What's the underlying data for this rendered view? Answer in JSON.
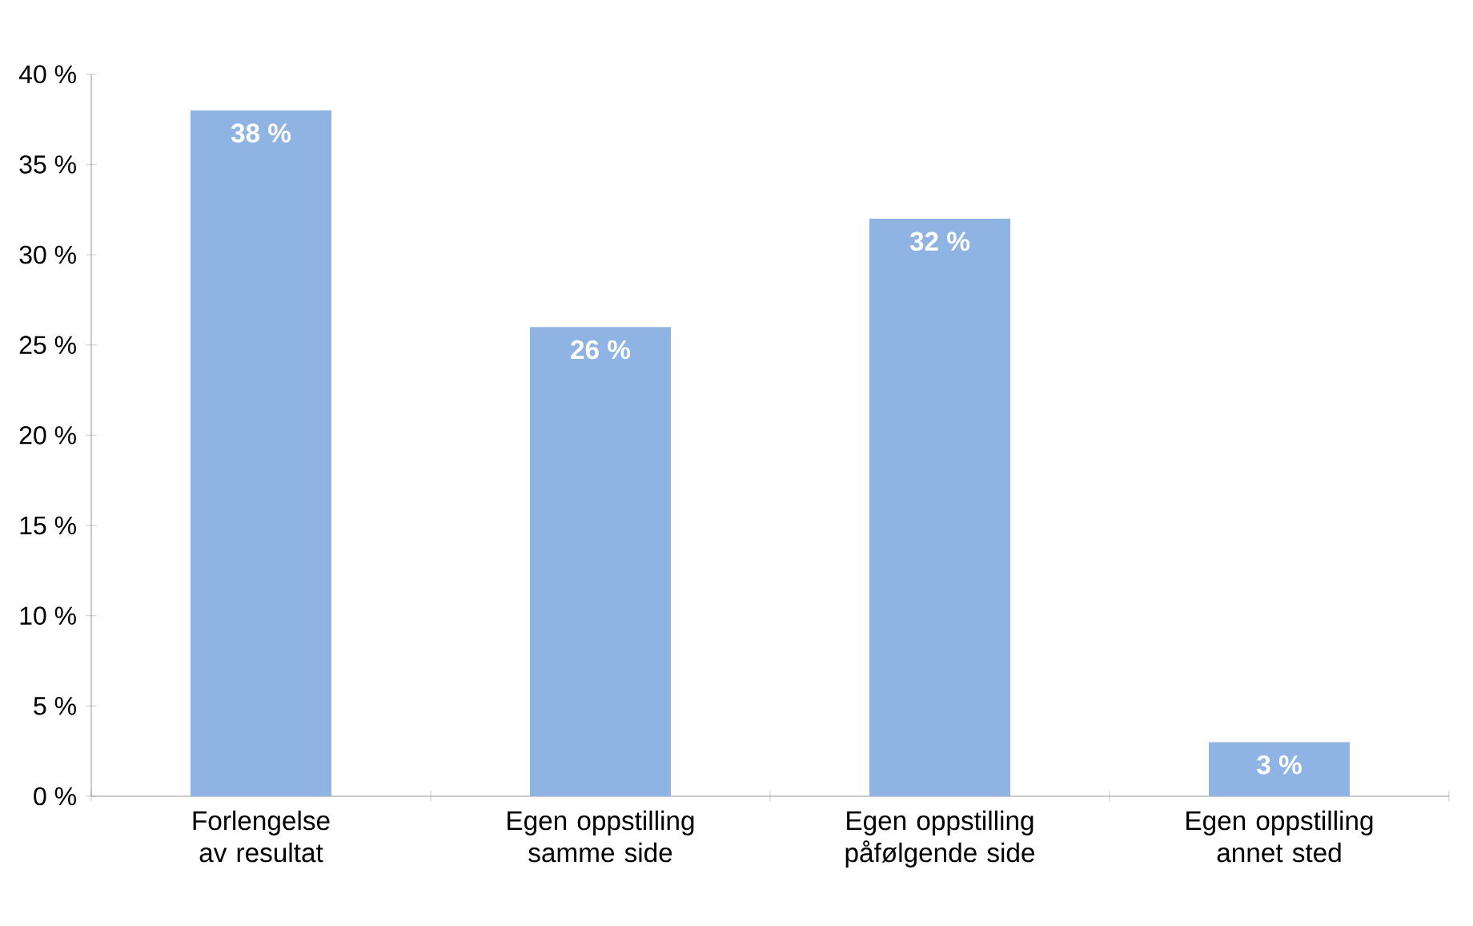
{
  "chart_data": {
    "type": "bar",
    "categories": [
      "Forlengelse av resultat",
      "Egen oppstilling samme side",
      "Egen oppstilling påfølgende side",
      "Egen oppstilling annet sted"
    ],
    "values": [
      38,
      26,
      32,
      3
    ],
    "value_labels": [
      "38 %",
      "26 %",
      "32 %",
      "3 %"
    ],
    "color": "#8fb4e3",
    "ylim": [
      0,
      40
    ],
    "yticks": [
      {
        "value": 0,
        "label": "0 %"
      },
      {
        "value": 5,
        "label": "5 %"
      },
      {
        "value": 10,
        "label": "10 %"
      },
      {
        "value": 15,
        "label": "15 %"
      },
      {
        "value": 20,
        "label": "20 %"
      },
      {
        "value": 25,
        "label": "25 %"
      },
      {
        "value": 30,
        "label": "30 %"
      },
      {
        "value": 35,
        "label": "35 %"
      },
      {
        "value": 40,
        "label": "40 %"
      }
    ],
    "grid": false
  }
}
